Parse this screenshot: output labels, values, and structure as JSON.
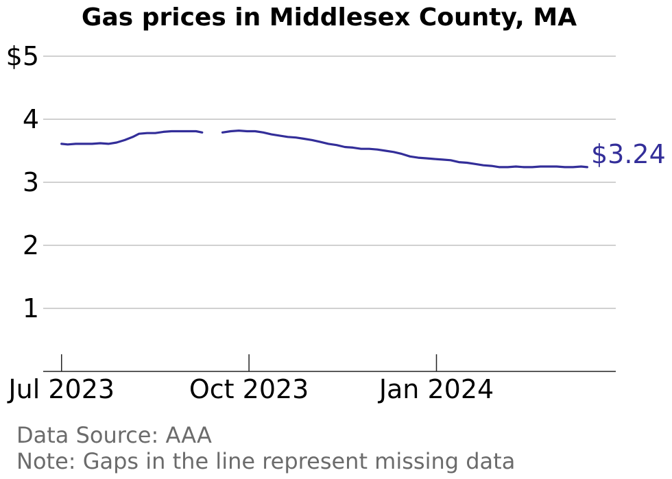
{
  "chart_data": {
    "type": "line",
    "title": "Gas prices in Middlesex County, MA",
    "xlabel": "",
    "ylabel": "",
    "x_ticks": [
      {
        "date": "2023-07-01",
        "label": "Jul 2023"
      },
      {
        "date": "2023-10-01",
        "label": "Oct 2023"
      },
      {
        "date": "2024-01-01",
        "label": "Jan 2024"
      }
    ],
    "y_ticks": [
      {
        "value": 1,
        "label": "1"
      },
      {
        "value": 2,
        "label": "2"
      },
      {
        "value": 3,
        "label": "3"
      },
      {
        "value": 4,
        "label": "4"
      },
      {
        "value": 5,
        "label": "$5"
      }
    ],
    "xlim": [
      "2023-06-22",
      "2024-03-29"
    ],
    "ylim": [
      0,
      5.2
    ],
    "grid": true,
    "line_color": "#332e99",
    "end_label": "$3.24",
    "series": [
      {
        "segments": [
          [
            [
              "2023-07-01",
              3.61
            ],
            [
              "2023-07-04",
              3.6
            ],
            [
              "2023-07-08",
              3.61
            ],
            [
              "2023-07-12",
              3.61
            ],
            [
              "2023-07-16",
              3.61
            ],
            [
              "2023-07-20",
              3.62
            ],
            [
              "2023-07-24",
              3.61
            ],
            [
              "2023-07-28",
              3.63
            ],
            [
              "2023-08-01",
              3.67
            ],
            [
              "2023-08-05",
              3.72
            ],
            [
              "2023-08-08",
              3.77
            ],
            [
              "2023-08-12",
              3.78
            ],
            [
              "2023-08-16",
              3.78
            ],
            [
              "2023-08-20",
              3.8
            ],
            [
              "2023-08-24",
              3.81
            ],
            [
              "2023-08-28",
              3.81
            ],
            [
              "2023-09-01",
              3.81
            ],
            [
              "2023-09-05",
              3.81
            ],
            [
              "2023-09-08",
              3.79
            ]
          ],
          [
            [
              "2023-09-18",
              3.79
            ],
            [
              "2023-09-22",
              3.81
            ],
            [
              "2023-09-26",
              3.82
            ],
            [
              "2023-09-30",
              3.81
            ],
            [
              "2023-10-04",
              3.81
            ],
            [
              "2023-10-08",
              3.79
            ],
            [
              "2023-10-12",
              3.76
            ],
            [
              "2023-10-16",
              3.74
            ],
            [
              "2023-10-20",
              3.72
            ],
            [
              "2023-10-24",
              3.71
            ],
            [
              "2023-10-28",
              3.69
            ],
            [
              "2023-11-01",
              3.67
            ],
            [
              "2023-11-05",
              3.64
            ],
            [
              "2023-11-09",
              3.61
            ],
            [
              "2023-11-13",
              3.59
            ],
            [
              "2023-11-17",
              3.56
            ],
            [
              "2023-11-21",
              3.55
            ],
            [
              "2023-11-25",
              3.53
            ],
            [
              "2023-11-29",
              3.53
            ],
            [
              "2023-12-03",
              3.52
            ],
            [
              "2023-12-07",
              3.5
            ],
            [
              "2023-12-11",
              3.48
            ],
            [
              "2023-12-15",
              3.45
            ],
            [
              "2023-12-19",
              3.41
            ],
            [
              "2023-12-23",
              3.39
            ],
            [
              "2023-12-27",
              3.38
            ],
            [
              "2023-12-31",
              3.37
            ],
            [
              "2024-01-04",
              3.36
            ],
            [
              "2024-01-08",
              3.35
            ],
            [
              "2024-01-12",
              3.32
            ],
            [
              "2024-01-16",
              3.31
            ],
            [
              "2024-01-20",
              3.29
            ],
            [
              "2024-01-24",
              3.27
            ],
            [
              "2024-01-28",
              3.26
            ],
            [
              "2024-02-01",
              3.24
            ],
            [
              "2024-02-05",
              3.24
            ],
            [
              "2024-02-09",
              3.25
            ],
            [
              "2024-02-13",
              3.24
            ],
            [
              "2024-02-17",
              3.24
            ],
            [
              "2024-02-21",
              3.25
            ],
            [
              "2024-02-25",
              3.25
            ],
            [
              "2024-02-29",
              3.25
            ],
            [
              "2024-03-04",
              3.24
            ],
            [
              "2024-03-08",
              3.24
            ],
            [
              "2024-03-12",
              3.25
            ],
            [
              "2024-03-15",
              3.24
            ]
          ]
        ]
      }
    ]
  },
  "notes": {
    "source": "Data Source: AAA",
    "gaps": "Note: Gaps in the line represent missing data"
  }
}
